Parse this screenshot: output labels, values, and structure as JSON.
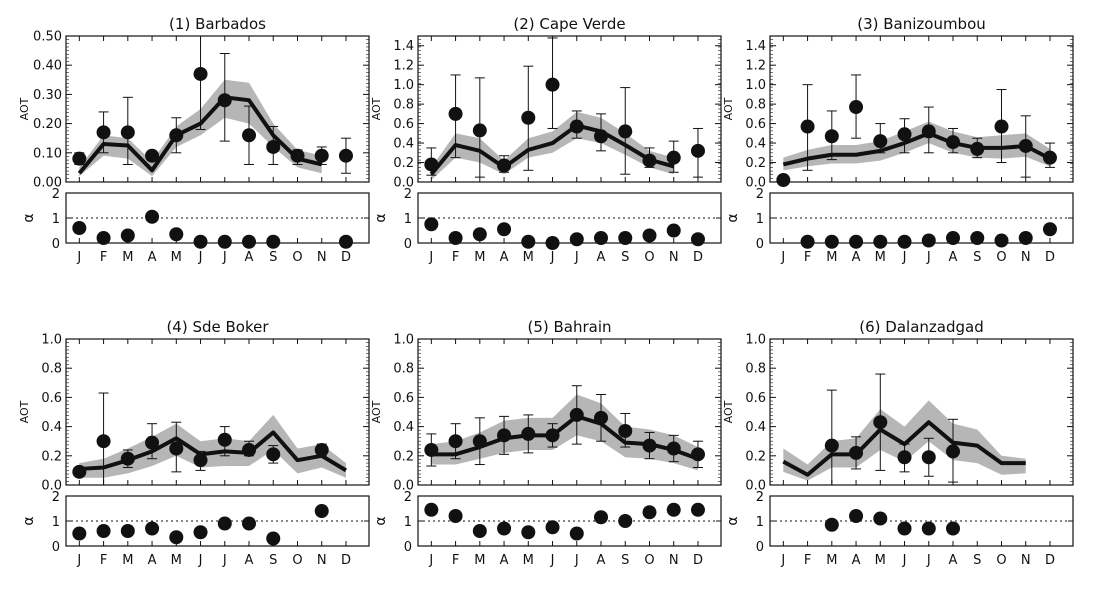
{
  "chart_data": [
    {
      "type": "line",
      "title": "(1) Barbados",
      "ylabel": "AOT",
      "ylim": [
        0,
        0.5
      ],
      "yticks": [
        "0.00",
        "0.10",
        "0.20",
        "0.30",
        "0.40",
        "0.50"
      ],
      "categories": [
        "J",
        "F",
        "M",
        "A",
        "M",
        "J",
        "J",
        "A",
        "S",
        "O",
        "N",
        "D"
      ],
      "model_line": [
        0.03,
        0.13,
        0.125,
        0.04,
        0.16,
        0.2,
        0.29,
        0.28,
        0.16,
        0.08,
        0.06,
        null
      ],
      "model_range": [
        [
          0.02,
          0.05
        ],
        [
          0.09,
          0.16
        ],
        [
          0.08,
          0.15
        ],
        [
          0.02,
          0.07
        ],
        [
          0.12,
          0.19
        ],
        [
          0.16,
          0.25
        ],
        [
          0.22,
          0.35
        ],
        [
          0.2,
          0.34
        ],
        [
          0.12,
          0.2
        ],
        [
          0.05,
          0.11
        ],
        [
          0.03,
          0.09
        ],
        null
      ],
      "observed": [
        0.08,
        0.17,
        0.17,
        0.09,
        0.16,
        0.37,
        0.28,
        0.16,
        0.12,
        0.09,
        0.09,
        0.09
      ],
      "observed_error": [
        [
          0.06,
          0.1
        ],
        [
          0.1,
          0.24
        ],
        [
          0.06,
          0.29
        ],
        null,
        [
          0.1,
          0.22
        ],
        [
          0.18,
          0.5
        ],
        [
          0.14,
          0.44
        ],
        [
          0.06,
          0.26
        ],
        [
          0.06,
          0.19
        ],
        [
          0.06,
          0.11
        ],
        [
          0.06,
          0.12
        ],
        [
          0.03,
          0.15
        ]
      ],
      "alpha": {
        "ylim": [
          0,
          2
        ],
        "yticks": [
          "0",
          "1",
          "2"
        ],
        "reference": 1,
        "values": [
          0.6,
          0.2,
          0.3,
          1.05,
          0.35,
          0.05,
          0.05,
          0.05,
          0.05,
          null,
          null,
          0.05
        ]
      }
    },
    {
      "type": "line",
      "title": "(2) Cape Verde",
      "ylabel": "AOT",
      "ylim": [
        0,
        1.5
      ],
      "yticks": [
        "0.0",
        "0.2",
        "0.4",
        "0.6",
        "0.8",
        "1.0",
        "1.2",
        "1.4"
      ],
      "categories": [
        "J",
        "F",
        "M",
        "A",
        "M",
        "J",
        "J",
        "A",
        "S",
        "O",
        "N",
        "D"
      ],
      "model_line": [
        0.08,
        0.38,
        0.32,
        0.15,
        0.33,
        0.4,
        0.58,
        0.52,
        0.38,
        0.23,
        0.16,
        null
      ],
      "model_range": [
        [
          0.02,
          0.15
        ],
        [
          0.25,
          0.5
        ],
        [
          0.2,
          0.45
        ],
        [
          0.08,
          0.22
        ],
        [
          0.25,
          0.45
        ],
        [
          0.3,
          0.52
        ],
        [
          0.45,
          0.72
        ],
        [
          0.4,
          0.66
        ],
        [
          0.28,
          0.5
        ],
        [
          0.15,
          0.32
        ],
        [
          0.08,
          0.25
        ],
        null
      ],
      "observed": [
        0.18,
        0.7,
        0.53,
        0.17,
        0.66,
        1.0,
        0.57,
        0.47,
        0.52,
        0.22,
        0.25,
        0.32
      ],
      "observed_error": [
        [
          0.07,
          0.35
        ],
        [
          0.25,
          1.1
        ],
        [
          0.05,
          1.07
        ],
        [
          0.1,
          0.27
        ],
        [
          0.12,
          1.19
        ],
        [
          0.55,
          1.48
        ],
        [
          0.45,
          0.73
        ],
        [
          0.32,
          0.7
        ],
        [
          0.08,
          0.97
        ],
        [
          0.15,
          0.35
        ],
        [
          0.1,
          0.42
        ],
        [
          0.05,
          0.55
        ]
      ],
      "alpha": {
        "ylim": [
          0,
          2
        ],
        "yticks": [
          "0",
          "1",
          "2"
        ],
        "reference": 1,
        "values": [
          0.75,
          0.2,
          0.35,
          0.55,
          0.05,
          0.0,
          0.15,
          0.2,
          0.2,
          0.3,
          0.5,
          0.15
        ]
      }
    },
    {
      "type": "line",
      "title": "(3) Banizoumbou",
      "ylabel": "AOT",
      "ylim": [
        0,
        1.5
      ],
      "yticks": [
        "0.0",
        "0.2",
        "0.4",
        "0.6",
        "0.8",
        "1.0",
        "1.2",
        "1.4"
      ],
      "categories": [
        "J",
        "F",
        "M",
        "A",
        "M",
        "J",
        "J",
        "A",
        "S",
        "O",
        "N",
        "D"
      ],
      "model_line": [
        0.18,
        0.24,
        0.28,
        0.28,
        0.32,
        0.4,
        0.5,
        0.4,
        0.35,
        0.35,
        0.37,
        0.24
      ],
      "model_range": [
        [
          0.12,
          0.25
        ],
        [
          0.16,
          0.33
        ],
        [
          0.19,
          0.38
        ],
        [
          0.19,
          0.38
        ],
        [
          0.22,
          0.42
        ],
        [
          0.3,
          0.52
        ],
        [
          0.4,
          0.62
        ],
        [
          0.3,
          0.52
        ],
        [
          0.25,
          0.46
        ],
        [
          0.24,
          0.48
        ],
        [
          0.26,
          0.5
        ],
        [
          0.16,
          0.34
        ]
      ],
      "observed": [
        0.02,
        0.57,
        0.47,
        0.77,
        0.42,
        0.49,
        0.52,
        0.41,
        0.34,
        0.57,
        0.37,
        0.25
      ],
      "observed_error": [
        null,
        [
          0.12,
          1.0
        ],
        [
          0.23,
          0.73
        ],
        [
          0.45,
          1.1
        ],
        [
          0.3,
          0.6
        ],
        [
          0.3,
          0.65
        ],
        [
          0.3,
          0.77
        ],
        [
          0.3,
          0.55
        ],
        [
          0.25,
          0.45
        ],
        [
          0.2,
          0.95
        ],
        [
          0.05,
          0.68
        ],
        [
          0.15,
          0.4
        ]
      ],
      "alpha": {
        "ylim": [
          0,
          2
        ],
        "yticks": [
          "0",
          "1",
          "2"
        ],
        "reference": 1,
        "values": [
          null,
          0.05,
          0.05,
          0.05,
          0.05,
          0.05,
          0.1,
          0.2,
          0.2,
          0.1,
          0.2,
          0.55
        ]
      }
    },
    {
      "type": "line",
      "title": "(4) Sde Boker",
      "ylabel": "AOT",
      "ylim": [
        0,
        1.0
      ],
      "yticks": [
        "0.0",
        "0.2",
        "0.4",
        "0.6",
        "0.8",
        "1.0"
      ],
      "categories": [
        "J",
        "F",
        "M",
        "A",
        "M",
        "J",
        "J",
        "A",
        "S",
        "O",
        "N",
        "D"
      ],
      "model_line": [
        0.11,
        0.12,
        0.17,
        0.23,
        0.32,
        0.21,
        0.23,
        0.22,
        0.36,
        0.17,
        0.2,
        0.1
      ],
      "model_range": [
        [
          0.05,
          0.15
        ],
        [
          0.05,
          0.18
        ],
        [
          0.08,
          0.25
        ],
        [
          0.13,
          0.33
        ],
        [
          0.2,
          0.42
        ],
        [
          0.12,
          0.3
        ],
        [
          0.13,
          0.32
        ],
        [
          0.13,
          0.3
        ],
        [
          0.24,
          0.48
        ],
        [
          0.08,
          0.25
        ],
        [
          0.12,
          0.28
        ],
        [
          0.05,
          0.15
        ]
      ],
      "observed": [
        0.09,
        0.3,
        0.18,
        0.29,
        0.25,
        0.17,
        0.31,
        0.24,
        0.21,
        null,
        0.24,
        null
      ],
      "observed_error": [
        [
          0.06,
          0.12
        ],
        [
          0.0,
          0.63
        ],
        [
          0.12,
          0.24
        ],
        [
          0.18,
          0.42
        ],
        [
          0.09,
          0.43
        ],
        [
          0.1,
          0.23
        ],
        [
          0.2,
          0.4
        ],
        [
          0.2,
          0.3
        ],
        [
          0.15,
          0.27
        ],
        null,
        [
          0.2,
          0.28
        ],
        null
      ],
      "alpha": {
        "ylim": [
          0,
          2
        ],
        "yticks": [
          "0",
          "1",
          "2"
        ],
        "reference": 1,
        "values": [
          0.5,
          0.6,
          0.6,
          0.7,
          0.35,
          0.55,
          0.9,
          0.9,
          0.3,
          null,
          1.4,
          null
        ]
      }
    },
    {
      "type": "line",
      "title": "(5) Bahrain",
      "ylabel": "AOT",
      "ylim": [
        0,
        1.0
      ],
      "yticks": [
        "0.0",
        "0.2",
        "0.4",
        "0.6",
        "0.8",
        "1.0"
      ],
      "categories": [
        "J",
        "F",
        "M",
        "A",
        "M",
        "J",
        "J",
        "A",
        "S",
        "O",
        "N",
        "D"
      ],
      "model_line": [
        0.21,
        0.21,
        0.26,
        0.32,
        0.34,
        0.34,
        0.47,
        0.42,
        0.29,
        0.28,
        0.24,
        0.18
      ],
      "model_range": [
        [
          0.14,
          0.28
        ],
        [
          0.14,
          0.3
        ],
        [
          0.18,
          0.36
        ],
        [
          0.22,
          0.44
        ],
        [
          0.24,
          0.46
        ],
        [
          0.24,
          0.46
        ],
        [
          0.34,
          0.62
        ],
        [
          0.3,
          0.56
        ],
        [
          0.19,
          0.4
        ],
        [
          0.18,
          0.38
        ],
        [
          0.15,
          0.34
        ],
        [
          0.1,
          0.26
        ]
      ],
      "observed": [
        0.24,
        0.3,
        0.3,
        0.34,
        0.35,
        0.34,
        0.48,
        0.46,
        0.37,
        0.27,
        0.25,
        0.21
      ],
      "observed_error": [
        [
          0.13,
          0.35
        ],
        [
          0.18,
          0.42
        ],
        [
          0.14,
          0.46
        ],
        [
          0.21,
          0.47
        ],
        [
          0.22,
          0.48
        ],
        [
          0.26,
          0.42
        ],
        [
          0.28,
          0.68
        ],
        [
          0.3,
          0.62
        ],
        [
          0.26,
          0.49
        ],
        [
          0.18,
          0.36
        ],
        [
          0.16,
          0.34
        ],
        [
          0.12,
          0.3
        ]
      ],
      "alpha": {
        "ylim": [
          0,
          2
        ],
        "yticks": [
          "0",
          "1",
          "2"
        ],
        "reference": 1,
        "values": [
          1.45,
          1.2,
          0.6,
          0.7,
          0.55,
          0.75,
          0.5,
          1.15,
          1.0,
          1.35,
          1.45,
          1.45
        ]
      }
    },
    {
      "type": "line",
      "title": "(6) Dalanzadgad",
      "ylabel": "AOT",
      "ylim": [
        0,
        1.0
      ],
      "yticks": [
        "0.0",
        "0.2",
        "0.4",
        "0.6",
        "0.8",
        "1.0"
      ],
      "categories": [
        "J",
        "F",
        "M",
        "A",
        "M",
        "J",
        "J",
        "A",
        "S",
        "O",
        "N",
        "D"
      ],
      "model_line": [
        0.16,
        0.07,
        0.21,
        0.21,
        0.38,
        0.28,
        0.43,
        0.29,
        0.27,
        0.15,
        0.15,
        null
      ],
      "model_range": [
        [
          0.09,
          0.25
        ],
        [
          0.03,
          0.14
        ],
        [
          0.12,
          0.3
        ],
        [
          0.12,
          0.32
        ],
        [
          0.24,
          0.52
        ],
        [
          0.16,
          0.4
        ],
        [
          0.3,
          0.58
        ],
        [
          0.17,
          0.42
        ],
        [
          0.15,
          0.38
        ],
        [
          0.07,
          0.2
        ],
        [
          0.08,
          0.18
        ],
        null
      ],
      "observed": [
        null,
        null,
        0.27,
        0.22,
        0.43,
        0.19,
        0.19,
        0.23,
        null,
        null,
        null,
        null
      ],
      "observed_error": [
        null,
        null,
        [
          0.0,
          0.65
        ],
        [
          0.11,
          0.33
        ],
        [
          0.1,
          0.76
        ],
        [
          0.09,
          0.28
        ],
        [
          0.06,
          0.32
        ],
        [
          0.02,
          0.45
        ],
        null,
        null,
        null,
        null
      ],
      "alpha": {
        "ylim": [
          0,
          2
        ],
        "yticks": [
          "0",
          "1",
          "2"
        ],
        "reference": 1,
        "values": [
          null,
          null,
          0.85,
          1.2,
          1.1,
          0.7,
          0.7,
          0.7,
          null,
          null,
          null,
          null
        ]
      }
    }
  ],
  "symbols": {
    "alpha": "α"
  },
  "colors": {
    "band": "#9d9d9d",
    "ink": "#111111"
  }
}
